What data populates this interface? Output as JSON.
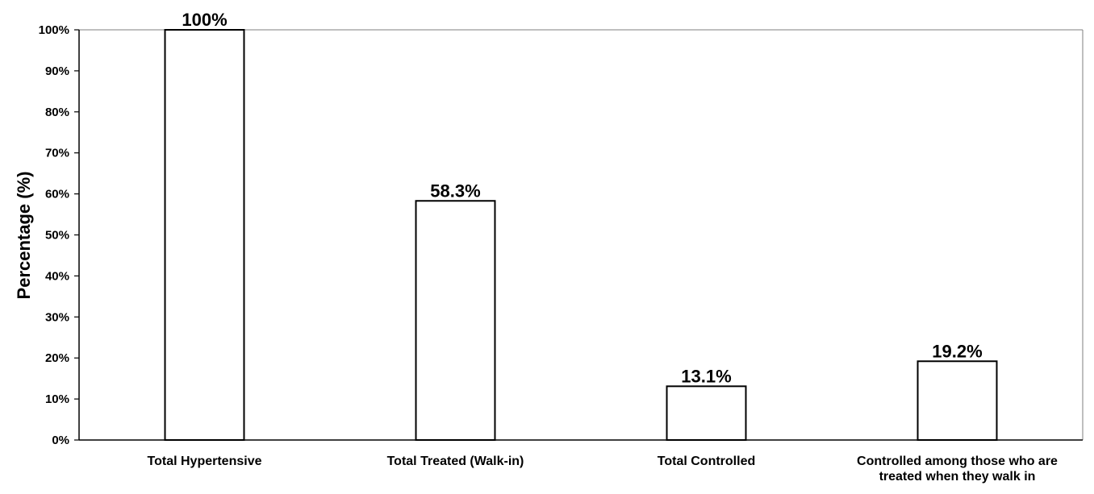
{
  "chart_data": {
    "type": "bar",
    "categories": [
      [
        "Total Hypertensive"
      ],
      [
        "Total Treated (Walk-in)"
      ],
      [
        "Total Controlled"
      ],
      [
        "Controlled among those who are",
        "treated when they walk in"
      ]
    ],
    "values": [
      100,
      58.3,
      13.1,
      19.2
    ],
    "data_labels": [
      "100%",
      "58.3%",
      "13.1%",
      "19.2%"
    ],
    "title": "",
    "xlabel": "",
    "ylabel": "Percentage  (%)",
    "ylim": [
      0,
      100
    ],
    "yticks": [
      0,
      10,
      20,
      30,
      40,
      50,
      60,
      70,
      80,
      90,
      100
    ],
    "ytick_labels": [
      "0%",
      "10%",
      "20%",
      "30%",
      "40%",
      "50%",
      "60%",
      "70%",
      "80%",
      "90%",
      "100%"
    ],
    "grid": false,
    "legend": "none",
    "colors": {
      "bar_fill": "#ffffff",
      "bar_stroke": "#000000",
      "axis": "#000000",
      "plot_border": "#7f7f7f",
      "text": "#000000"
    }
  }
}
